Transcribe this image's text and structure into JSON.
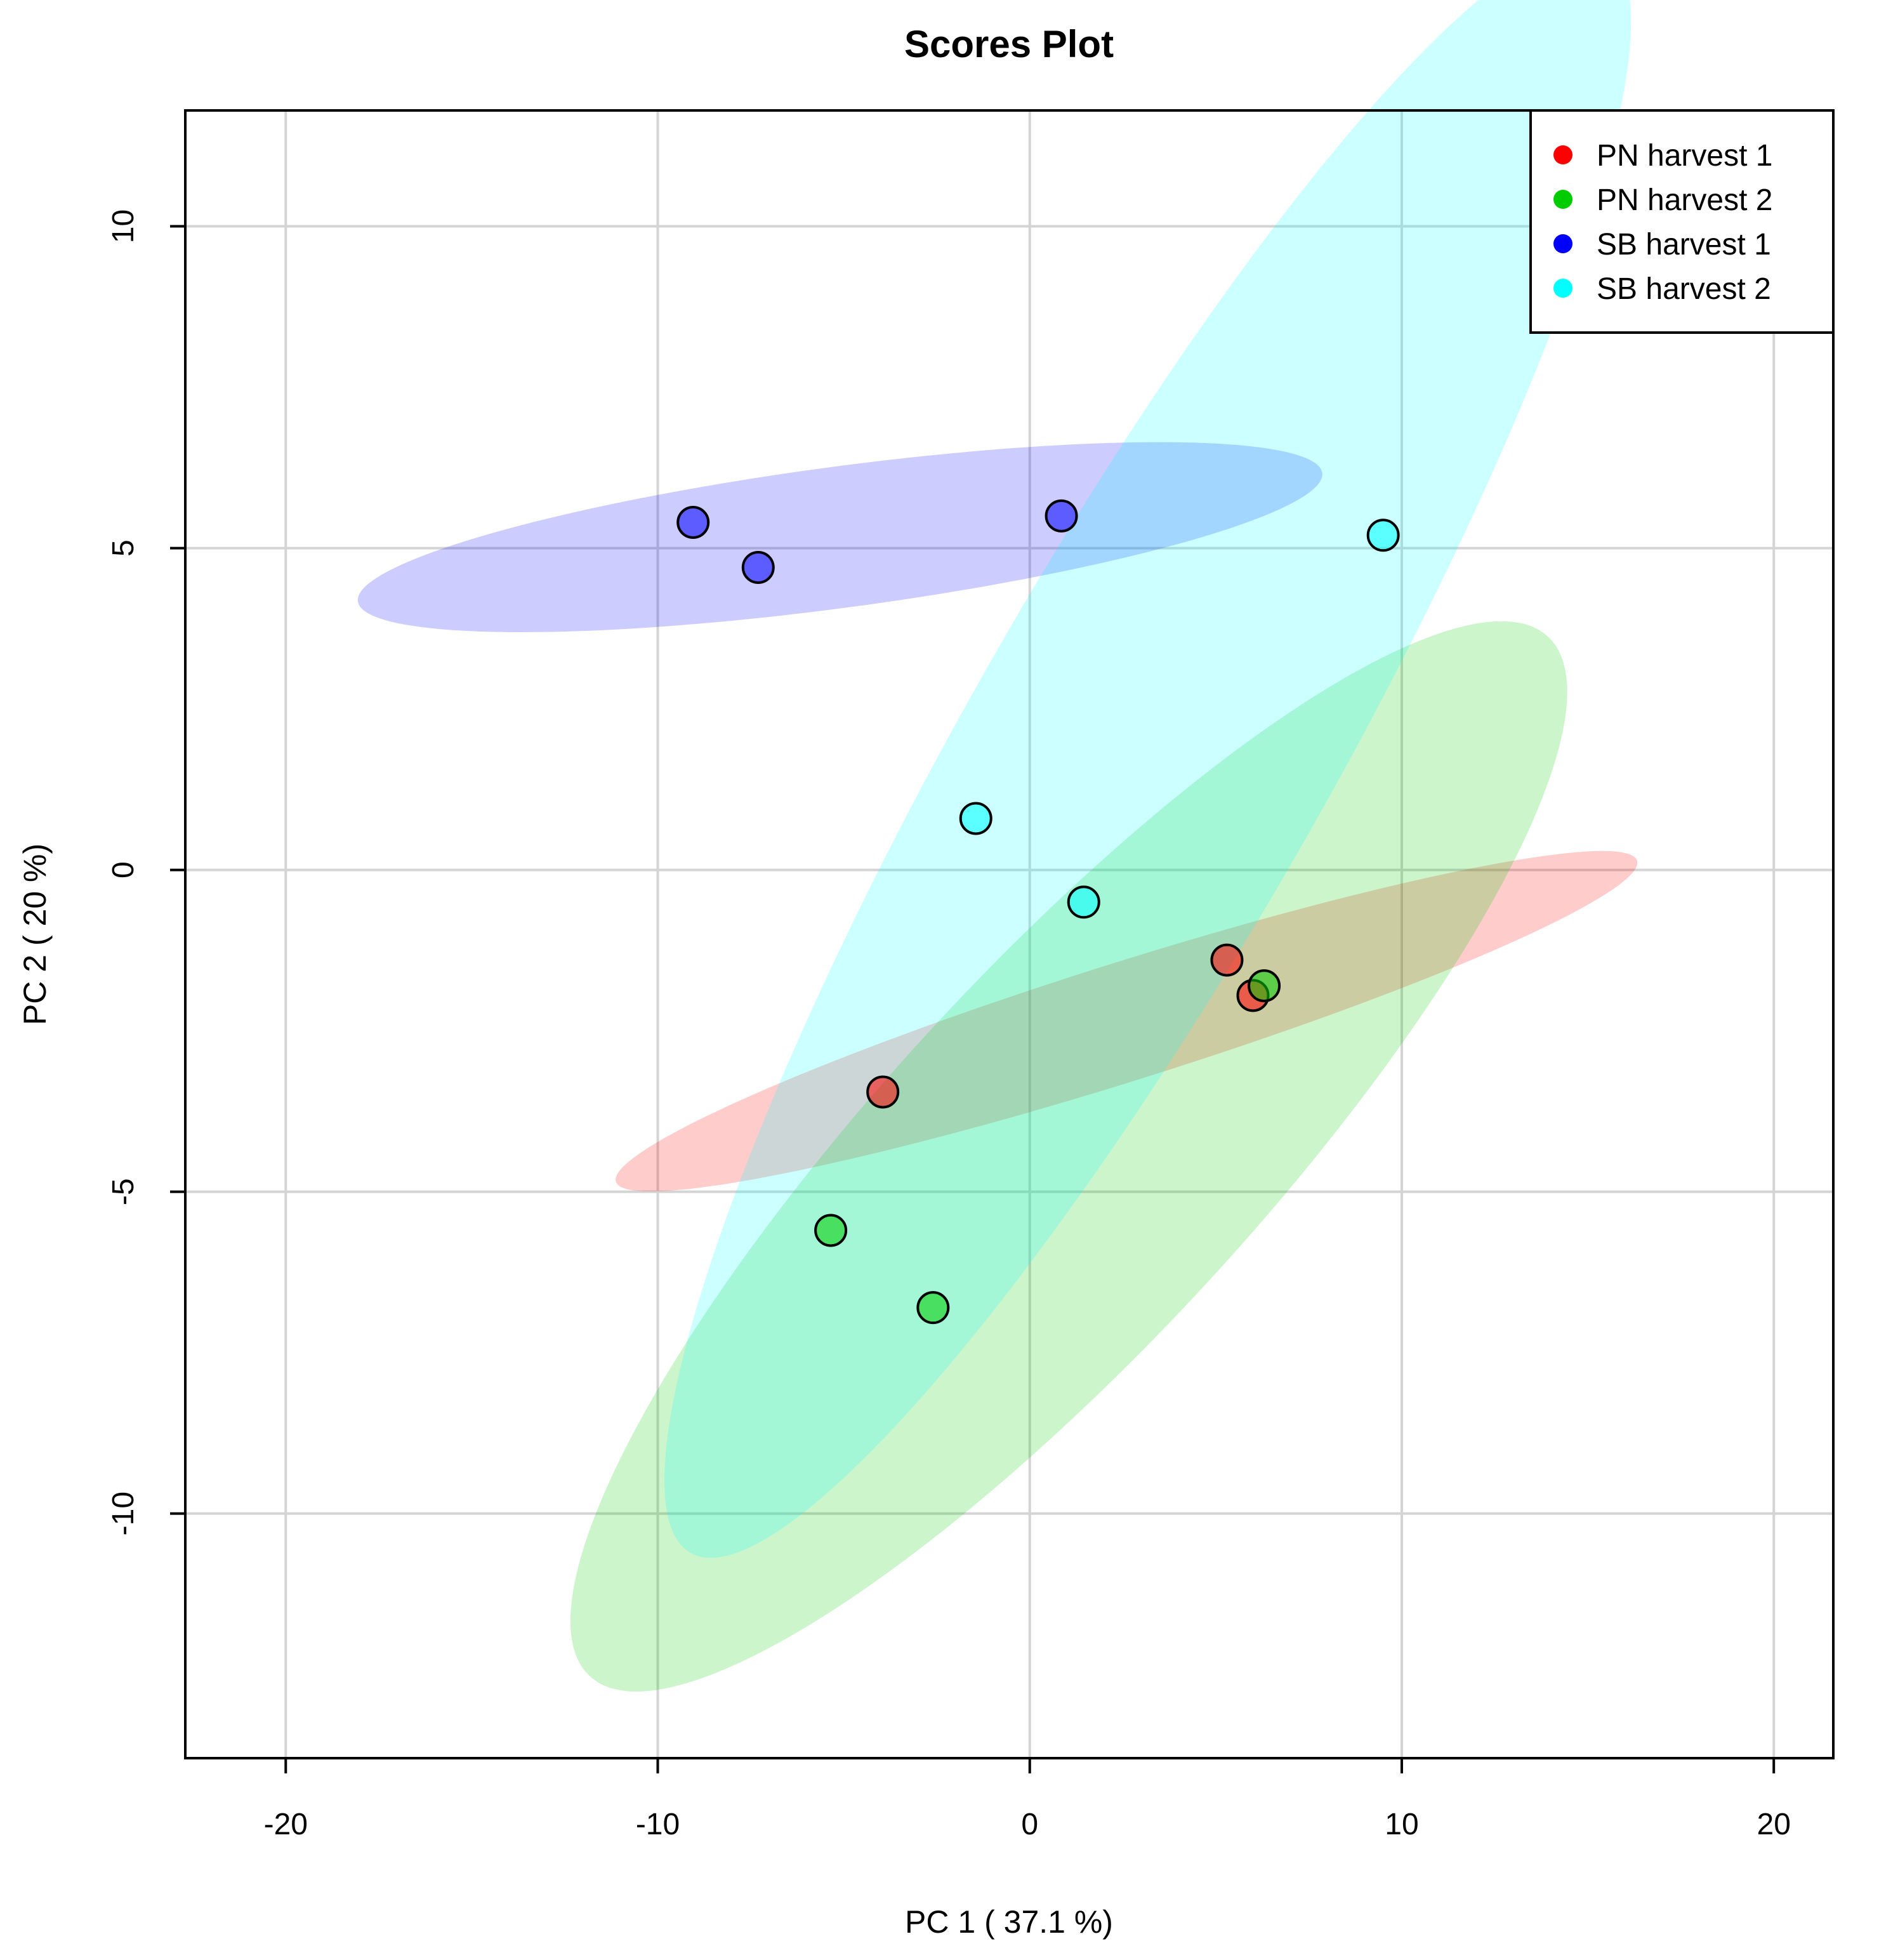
{
  "chart_data": {
    "type": "scatter",
    "title": "Scores Plot",
    "xlabel": "PC 1 ( 37.1 %)",
    "ylabel": "PC 2 ( 20 %)",
    "xlim": [
      -22.7,
      21.6
    ],
    "ylim": [
      -13.8,
      11.8
    ],
    "xticks": [
      -20,
      -10,
      0,
      10,
      20
    ],
    "yticks": [
      -10,
      -5,
      0,
      5,
      10
    ],
    "xtick_labels": [
      "-20",
      "-10",
      "0",
      "10",
      "20"
    ],
    "ytick_labels": [
      "-10",
      "-5",
      "0",
      "5",
      "10"
    ],
    "grid": true,
    "legend_position": "top-right",
    "series": [
      {
        "name": "PN harvest 1",
        "color": "#ff0000",
        "points": [
          [
            5.3,
            -1.4
          ],
          [
            6.0,
            -1.95
          ],
          [
            -3.95,
            -3.45
          ]
        ],
        "ellipse": {
          "center": [
            2.6,
            -2.35
          ],
          "semi_major": 13.95,
          "semi_minor": 0.93,
          "angle_deg": 10.3
        }
      },
      {
        "name": "PN harvest 2",
        "color": "#00cc00",
        "points": [
          [
            6.3,
            -1.8
          ],
          [
            -5.35,
            -5.6
          ],
          [
            -2.6,
            -6.8
          ]
        ],
        "ellipse": {
          "center": [
            1.05,
            -4.45
          ],
          "semi_major": 15.2,
          "semi_minor": 3.23,
          "angle_deg": 32.1
        }
      },
      {
        "name": "SB harvest 1",
        "color": "#0000ff",
        "points": [
          [
            -9.05,
            5.4
          ],
          [
            -7.3,
            4.7
          ],
          [
            0.85,
            5.5
          ]
        ],
        "ellipse": {
          "center": [
            -5.1,
            5.17
          ],
          "semi_major": 13.0,
          "semi_minor": 1.1,
          "angle_deg": 4.4
        }
      },
      {
        "name": "SB harvest 2",
        "color": "#00ffff",
        "points": [
          [
            -1.45,
            0.8
          ],
          [
            1.45,
            -0.5
          ],
          [
            9.5,
            5.2
          ]
        ],
        "ellipse": {
          "center": [
            3.17,
            1.85
          ],
          "semi_major": 17.5,
          "semi_minor": 3.45,
          "angle_deg": 45.4
        }
      }
    ]
  }
}
